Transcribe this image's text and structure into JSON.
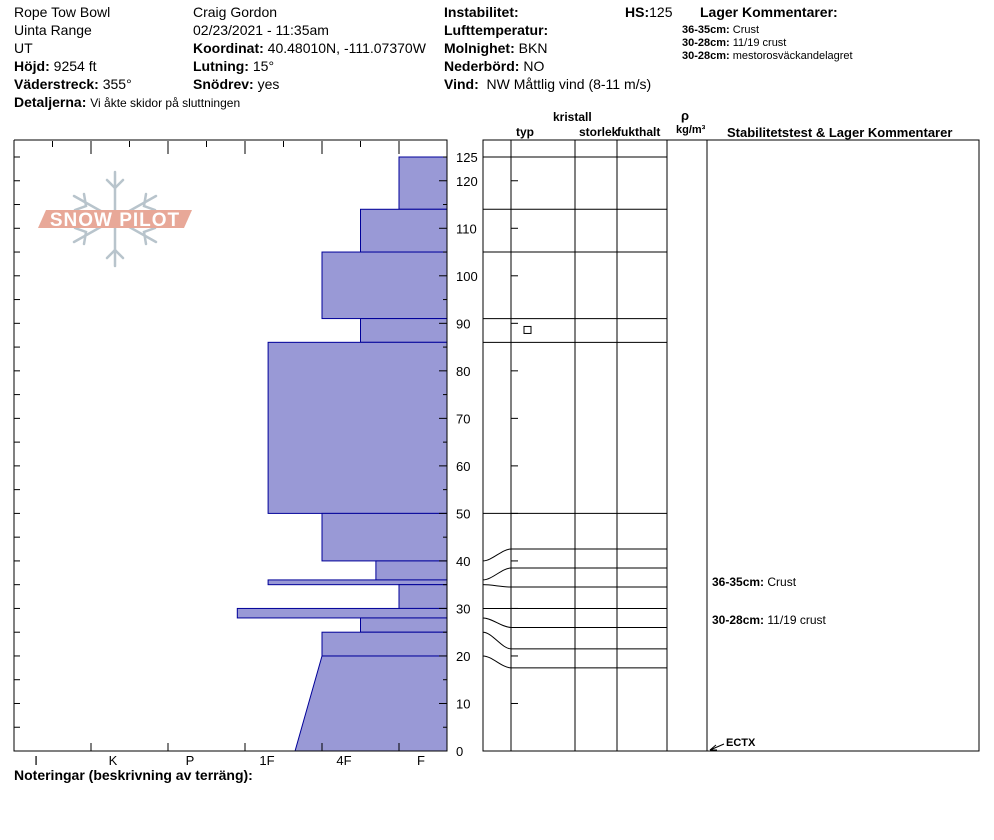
{
  "header": {
    "location": "Rope Tow Bowl",
    "range": "Uinta Range",
    "state": "UT",
    "elevation_label": "Höjd:",
    "elevation": "9254 ft",
    "aspect_label": "Väderstreck:",
    "aspect": "355°",
    "details_label": "Detaljerna:",
    "details": "Vi åkte skidor på sluttningen",
    "observer": "Craig Gordon",
    "datetime": "02/23/2021 - 11:35am",
    "coord_label": "Koordinat:",
    "coord": "40.48010N, -111.07370W",
    "slope_label": "Lutning:",
    "slope": "15°",
    "drift_label": "Snödrev:",
    "drift": "yes",
    "instability_label": "Instabilitet:",
    "instability": "",
    "airtemp_label": "Lufttemperatur:",
    "airtemp": "",
    "clouds_label": "Molnighet:",
    "clouds": "BKN",
    "precip_label": "Nederbörd:",
    "precip": "NO",
    "wind_label": "Vind:",
    "wind": "NW Måttlig vind (8-11 m/s)",
    "hs_label": "HS:",
    "hs": "125",
    "layer_comments_title": "Lager Kommentarer:",
    "layer_comments": [
      {
        "range": "36-35cm:",
        "text": "Crust"
      },
      {
        "range": "30-28cm:",
        "text": "11/19 crust"
      },
      {
        "range": "30-28cm:",
        "text": "mestorosväckandelagret"
      }
    ]
  },
  "logo": {
    "text": "SNOW PILOT"
  },
  "columns": {
    "crystal": "kristall",
    "type": "typ",
    "size": "storlek",
    "moisture": "fukthalt",
    "rho": "ρ",
    "density_unit": "kg/m³",
    "stability": "Stabilitetstest & Lager Kommentarer"
  },
  "stability_notes": [
    {
      "range": "36-35cm:",
      "text": "Crust",
      "depth": 35.5
    },
    {
      "range": "30-28cm:",
      "text": "11/19 crust",
      "depth": 27.5
    }
  ],
  "test": {
    "label": "ECTX",
    "depth": 0
  },
  "notes_label": "Noteringar (beskrivning av terräng):",
  "colors": {
    "fill": "#9999d6",
    "stroke": "#000099",
    "logo": "#e8a898",
    "flake": "#b8c4cc"
  },
  "chart_data": {
    "type": "bar",
    "orientation": "horizontal",
    "y_axis": {
      "min": 0,
      "max": 125,
      "ticks": [
        0,
        10,
        20,
        30,
        40,
        50,
        60,
        70,
        80,
        90,
        100,
        110,
        120,
        125
      ]
    },
    "x_axis": {
      "ticks": [
        "I",
        "K",
        "P",
        "1F",
        "4F",
        "F"
      ],
      "levels": [
        6,
        5,
        4,
        3,
        2,
        1
      ]
    },
    "hardness_layers": [
      {
        "top": 125,
        "bottom": 114,
        "hardness": 1.0
      },
      {
        "top": 114,
        "bottom": 105,
        "hardness": 1.5
      },
      {
        "top": 105,
        "bottom": 91,
        "hardness": 2.0
      },
      {
        "top": 91,
        "bottom": 86,
        "hardness": 1.5
      },
      {
        "top": 86,
        "bottom": 50,
        "hardness": 2.7
      },
      {
        "top": 50,
        "bottom": 40,
        "hardness": 2.0
      },
      {
        "top": 40,
        "bottom": 36,
        "hardness": 1.3
      },
      {
        "top": 36,
        "bottom": 35,
        "hardness": 2.7
      },
      {
        "top": 35,
        "bottom": 30,
        "hardness": 1.0
      },
      {
        "top": 30,
        "bottom": 28,
        "hardness": 3.1
      },
      {
        "top": 28,
        "bottom": 25,
        "hardness": 1.5
      },
      {
        "top": 25,
        "bottom": 20,
        "hardness": 2.0
      },
      {
        "top": 20,
        "bottom": 0,
        "hardness_top": 2.0,
        "hardness_bottom": 2.35
      }
    ],
    "layer_boundaries": [
      125,
      114,
      105,
      91,
      86,
      50,
      42.5,
      38.5,
      34.5,
      30,
      26,
      21.5,
      17.5
    ],
    "layer_boundaries_left": [
      125,
      114,
      105,
      91,
      86,
      50,
      40,
      36,
      35,
      30,
      28,
      25,
      20
    ],
    "grain_symbols": [
      {
        "depth": 88.5,
        "symbol": "square"
      }
    ]
  }
}
